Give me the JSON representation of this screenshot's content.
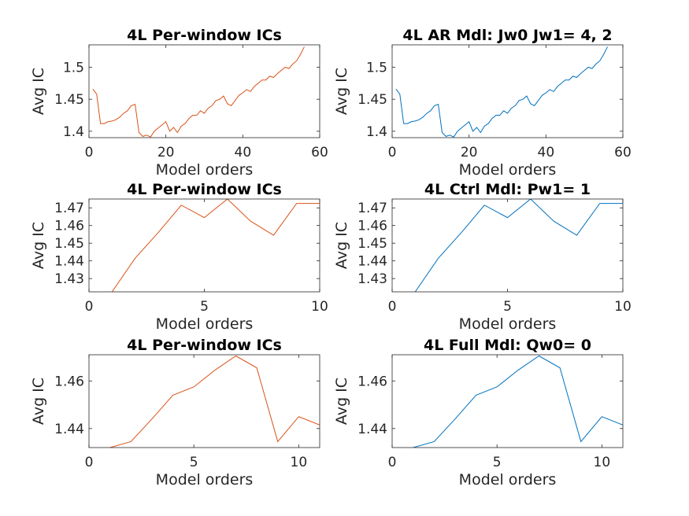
{
  "chart_data": [
    {
      "type": "line",
      "title": "4L Per-window ICs",
      "xlabel": "Model orders",
      "ylabel": "Avg IC",
      "xlim": [
        0,
        60
      ],
      "ylim": [
        1.39,
        1.535
      ],
      "xticks": [
        0,
        20,
        40,
        60
      ],
      "xtick_labels": [
        "0",
        "20",
        "40",
        "60"
      ],
      "yticks": [
        1.4,
        1.45,
        1.5
      ],
      "ytick_labels": [
        "1.4",
        "1.45",
        "1.5"
      ],
      "color": "#d95319",
      "grid": false,
      "x": [
        1,
        2,
        3,
        4,
        5,
        6,
        7,
        8,
        9,
        10,
        11,
        12,
        13,
        14,
        15,
        16,
        17,
        18,
        19,
        20,
        21,
        22,
        23,
        24,
        25,
        26,
        27,
        28,
        29,
        30,
        31,
        32,
        33,
        34,
        35,
        36,
        37,
        38,
        39,
        40,
        41,
        42,
        43,
        44,
        45,
        46,
        47,
        48,
        49,
        50,
        51,
        52,
        53,
        54,
        55,
        56
      ],
      "y": [
        1.466,
        1.458,
        1.412,
        1.412,
        1.415,
        1.416,
        1.418,
        1.422,
        1.428,
        1.432,
        1.44,
        1.442,
        1.398,
        1.392,
        1.394,
        1.391,
        1.4,
        1.405,
        1.41,
        1.415,
        1.4,
        1.406,
        1.398,
        1.408,
        1.412,
        1.42,
        1.425,
        1.425,
        1.432,
        1.428,
        1.436,
        1.44,
        1.448,
        1.45,
        1.455,
        1.443,
        1.44,
        1.448,
        1.456,
        1.46,
        1.465,
        1.462,
        1.47,
        1.475,
        1.48,
        1.48,
        1.486,
        1.484,
        1.49,
        1.495,
        1.5,
        1.498,
        1.505,
        1.51,
        1.52,
        1.532
      ]
    },
    {
      "type": "line",
      "title": "4L AR Mdl: Jw0 Jw1= 4, 2",
      "xlabel": "Model orders",
      "ylabel": "Avg IC",
      "xlim": [
        0,
        60
      ],
      "ylim": [
        1.39,
        1.535
      ],
      "xticks": [
        0,
        20,
        40,
        60
      ],
      "xtick_labels": [
        "0",
        "20",
        "40",
        "60"
      ],
      "yticks": [
        1.4,
        1.45,
        1.5
      ],
      "ytick_labels": [
        "1.4",
        "1.45",
        "1.5"
      ],
      "color": "#0072bd",
      "grid": false,
      "x": [
        1,
        2,
        3,
        4,
        5,
        6,
        7,
        8,
        9,
        10,
        11,
        12,
        13,
        14,
        15,
        16,
        17,
        18,
        19,
        20,
        21,
        22,
        23,
        24,
        25,
        26,
        27,
        28,
        29,
        30,
        31,
        32,
        33,
        34,
        35,
        36,
        37,
        38,
        39,
        40,
        41,
        42,
        43,
        44,
        45,
        46,
        47,
        48,
        49,
        50,
        51,
        52,
        53,
        54,
        55,
        56
      ],
      "y": [
        1.466,
        1.458,
        1.412,
        1.412,
        1.415,
        1.416,
        1.418,
        1.422,
        1.428,
        1.432,
        1.44,
        1.442,
        1.398,
        1.392,
        1.394,
        1.391,
        1.4,
        1.405,
        1.41,
        1.415,
        1.4,
        1.406,
        1.398,
        1.408,
        1.412,
        1.42,
        1.425,
        1.425,
        1.432,
        1.428,
        1.436,
        1.44,
        1.448,
        1.45,
        1.455,
        1.443,
        1.44,
        1.448,
        1.456,
        1.46,
        1.465,
        1.462,
        1.47,
        1.475,
        1.48,
        1.48,
        1.486,
        1.484,
        1.49,
        1.495,
        1.5,
        1.498,
        1.505,
        1.51,
        1.52,
        1.532
      ]
    },
    {
      "type": "line",
      "title": "4L Per-window ICs",
      "xlabel": "Model orders",
      "ylabel": "Avg IC",
      "xlim": [
        0,
        10
      ],
      "ylim": [
        1.4225,
        1.475
      ],
      "xticks": [
        0,
        5,
        10
      ],
      "xtick_labels": [
        "0",
        "5",
        "10"
      ],
      "yticks": [
        1.43,
        1.44,
        1.45,
        1.46,
        1.47
      ],
      "ytick_labels": [
        "1.43",
        "1.44",
        "1.45",
        "1.46",
        "1.47"
      ],
      "color": "#d95319",
      "grid": false,
      "x": [
        1,
        2,
        3,
        4,
        5,
        6,
        7,
        8,
        9,
        10
      ],
      "y": [
        1.4225,
        1.4415,
        1.456,
        1.4715,
        1.4645,
        1.475,
        1.4625,
        1.4545,
        1.4725,
        1.4725
      ]
    },
    {
      "type": "line",
      "title": "4L Ctrl Mdl: Pw1= 1",
      "xlabel": "Model orders",
      "ylabel": "Avg IC",
      "xlim": [
        0,
        10
      ],
      "ylim": [
        1.4225,
        1.475
      ],
      "xticks": [
        0,
        5,
        10
      ],
      "xtick_labels": [
        "0",
        "5",
        "10"
      ],
      "yticks": [
        1.43,
        1.44,
        1.45,
        1.46,
        1.47
      ],
      "ytick_labels": [
        "1.43",
        "1.44",
        "1.45",
        "1.46",
        "1.47"
      ],
      "color": "#0072bd",
      "grid": false,
      "x": [
        1,
        2,
        3,
        4,
        5,
        6,
        7,
        8,
        9,
        10
      ],
      "y": [
        1.4225,
        1.4415,
        1.456,
        1.4715,
        1.4645,
        1.475,
        1.4625,
        1.4545,
        1.4725,
        1.4725
      ]
    },
    {
      "type": "line",
      "title": "4L Per-window ICs",
      "xlabel": "Model orders",
      "ylabel": "Avg IC",
      "xlim": [
        0,
        11
      ],
      "ylim": [
        1.432,
        1.471
      ],
      "xticks": [
        0,
        5,
        10
      ],
      "xtick_labels": [
        "0",
        "5",
        "10"
      ],
      "yticks": [
        1.44,
        1.46
      ],
      "ytick_labels": [
        "1.44",
        "1.46"
      ],
      "color": "#d95319",
      "grid": false,
      "x": [
        1,
        2,
        3,
        4,
        5,
        6,
        7,
        8,
        9,
        10,
        11
      ],
      "y": [
        1.432,
        1.4345,
        1.444,
        1.454,
        1.4575,
        1.4645,
        1.4705,
        1.4655,
        1.4345,
        1.445,
        1.4415
      ]
    },
    {
      "type": "line",
      "title": "4L Full Mdl: Qw0= 0",
      "xlabel": "Model orders",
      "ylabel": "Avg IC",
      "xlim": [
        0,
        11
      ],
      "ylim": [
        1.432,
        1.471
      ],
      "xticks": [
        0,
        5,
        10
      ],
      "xtick_labels": [
        "0",
        "5",
        "10"
      ],
      "yticks": [
        1.44,
        1.46
      ],
      "ytick_labels": [
        "1.44",
        "1.46"
      ],
      "color": "#0072bd",
      "grid": false,
      "x": [
        1,
        2,
        3,
        4,
        5,
        6,
        7,
        8,
        9,
        10,
        11
      ],
      "y": [
        1.432,
        1.4345,
        1.444,
        1.454,
        1.4575,
        1.4645,
        1.4705,
        1.4655,
        1.4345,
        1.445,
        1.4415
      ]
    }
  ]
}
